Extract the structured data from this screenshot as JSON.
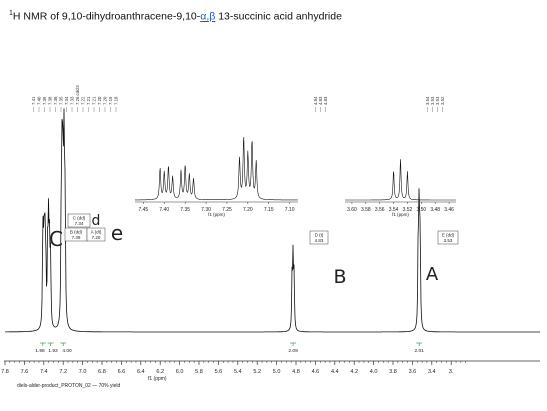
{
  "title": {
    "prefix_sup": "1",
    "before": "H NMR of 9,10-dihydroanthracene-9,10-",
    "alpha_beta": "α,β",
    "after": " 13-succinic acid anhydride"
  },
  "chart_data": {
    "type": "line",
    "kind": "1H NMR spectrum",
    "xlabel": "f1 (ppm)",
    "xlim": [
      7.8,
      3.3
    ],
    "x_ticks": [
      "7.8",
      "7.6",
      "7.4",
      "7.2",
      "7.0",
      "6.8",
      "6.6",
      "6.4",
      "6.2",
      "6.0",
      "5.8",
      "5.6",
      "5.4",
      "5.2",
      "5.0",
      "4.8",
      "4.6",
      "4.4",
      "4.2",
      "4.0",
      "3.8",
      "3.6",
      "3.4",
      "3."
    ],
    "footer": "diels-alder-product_PROTON_02 — 70% yield",
    "peaks": [
      {
        "ppm": 7.41,
        "height": 0.42
      },
      {
        "ppm": 7.4,
        "height": 0.36
      },
      {
        "ppm": 7.39,
        "height": 0.44
      },
      {
        "ppm": 7.38,
        "height": 0.3
      },
      {
        "ppm": 7.36,
        "height": 0.38
      },
      {
        "ppm": 7.35,
        "height": 0.45
      },
      {
        "ppm": 7.34,
        "height": 0.33
      },
      {
        "ppm": 7.33,
        "height": 0.28
      },
      {
        "ppm": 7.22,
        "height": 0.55
      },
      {
        "ppm": 7.21,
        "height": 0.82
      },
      {
        "ppm": 7.2,
        "height": 0.6
      },
      {
        "ppm": 7.19,
        "height": 0.78
      },
      {
        "ppm": 7.18,
        "height": 0.5
      },
      {
        "ppm": 4.84,
        "height": 0.24
      },
      {
        "ppm": 4.83,
        "height": 0.3
      },
      {
        "ppm": 4.82,
        "height": 0.22
      },
      {
        "ppm": 3.54,
        "height": 0.4
      },
      {
        "ppm": 3.53,
        "height": 0.55
      },
      {
        "ppm": 3.52,
        "height": 0.38
      }
    ],
    "peak_label_groups": [
      {
        "labels": [
          "7.41",
          "7.40",
          "7.39",
          "7.38",
          "7.36",
          "7.35",
          "7.34",
          "7.33",
          "7.26 cdcl3",
          "7.22",
          "7.21",
          "7.21",
          "7.20",
          "7.20",
          "7.19",
          "7.18"
        ]
      },
      {
        "labels": [
          "4.84",
          "4.83",
          "4.83"
        ]
      },
      {
        "labels": [
          "3.54",
          "3.53",
          "3.53",
          "3.52"
        ]
      }
    ],
    "assignment_boxes": [
      {
        "name": "C (dd)",
        "shift": "7.34"
      },
      {
        "name": "B (dd)",
        "shift": "7.39"
      },
      {
        "name": "A (dt)",
        "shift": "7.20"
      },
      {
        "name": "D (t)",
        "shift": "4.83"
      },
      {
        "name": "E (dd)",
        "shift": "3.53"
      }
    ],
    "integrations": [
      {
        "ppm": 7.41,
        "value": "1.98"
      },
      {
        "ppm": 7.33,
        "value": "1.93"
      },
      {
        "ppm": 7.2,
        "value": "4.00"
      },
      {
        "ppm": 4.83,
        "value": "2.09"
      },
      {
        "ppm": 3.53,
        "value": "2.01"
      }
    ],
    "inset_aromatic": {
      "xlabel": "f1 (ppm)",
      "ticks": [
        "7.45",
        "7.40",
        "7.35",
        "7.30",
        "7.25",
        "7.20",
        "7.15",
        "7.10"
      ],
      "xlim": [
        7.47,
        7.08
      ]
    },
    "inset_aliphatic": {
      "xlabel": "f1 (ppm)",
      "ticks": [
        "3.60",
        "3.58",
        "3.56",
        "3.54",
        "3.52",
        "3.50",
        "3.48",
        "3.46"
      ],
      "xlim": [
        3.61,
        3.45
      ]
    },
    "handwritten": {
      "C": "C",
      "d": "d",
      "e": "e",
      "B": "B",
      "A": "A"
    }
  }
}
